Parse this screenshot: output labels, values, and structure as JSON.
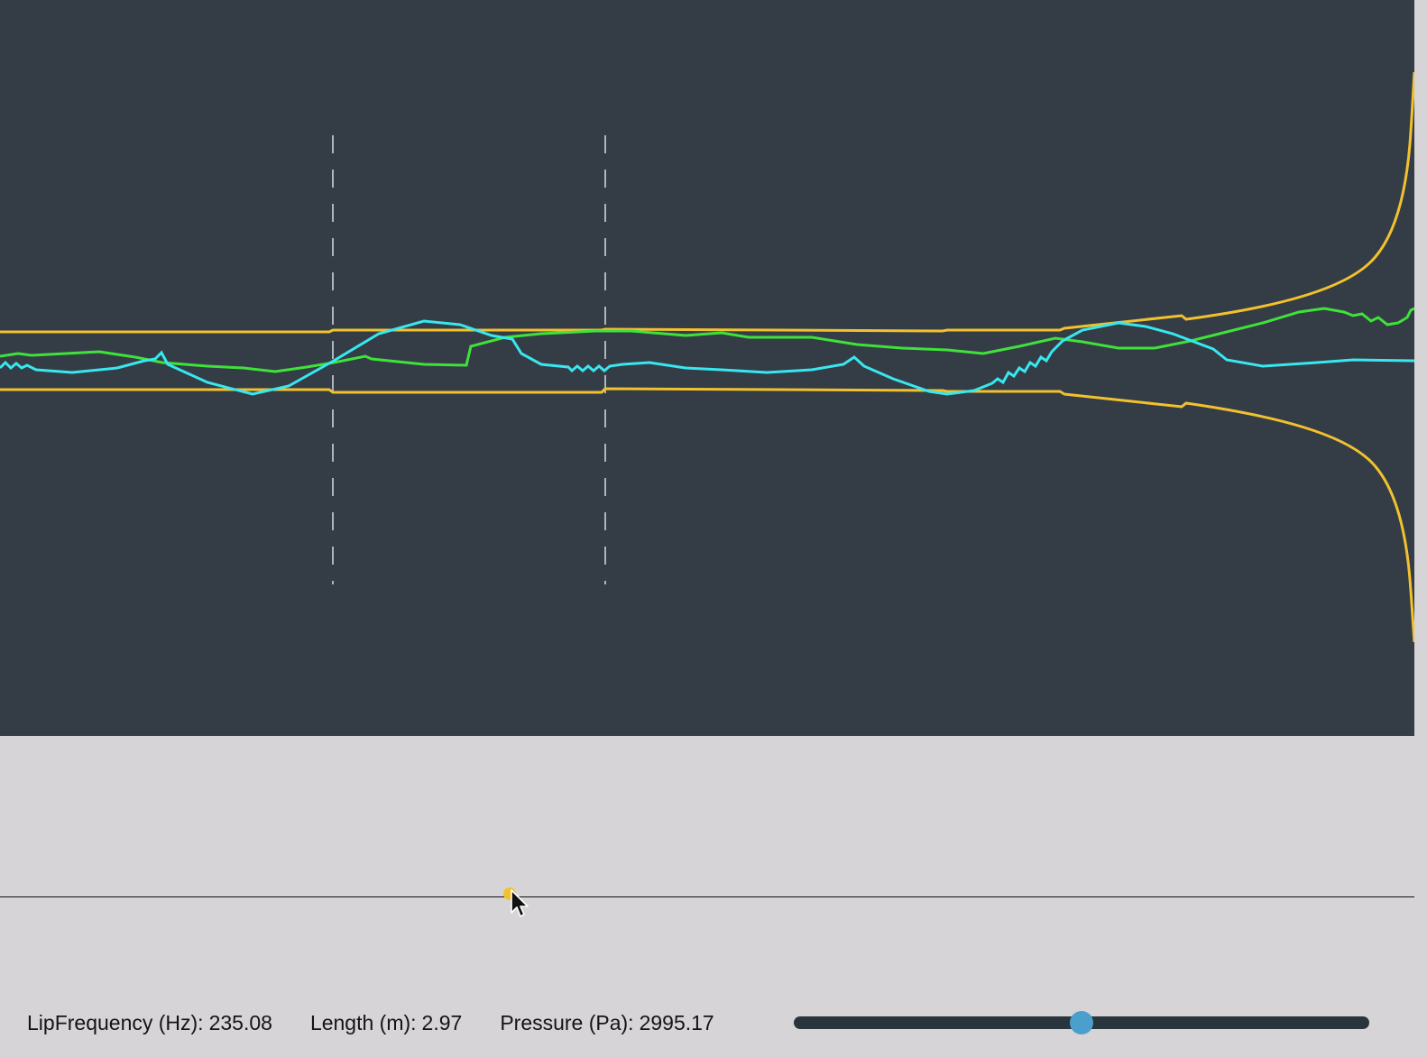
{
  "colors": {
    "canvas_bg": "#343d46",
    "panel_bg": "#d6d4d7",
    "bore": "#f2c12e",
    "pressure_wave": "#3fe23a",
    "velocity_wave": "#38e7ef",
    "marker_line": "#aeb4ba",
    "slider_track": "#2a343c",
    "slider_thumb": "#4a9fcc"
  },
  "params": {
    "lip_frequency": {
      "label": "LipFrequency (Hz):",
      "value": "235.08"
    },
    "length": {
      "label": "Length (m):",
      "value": "2.97"
    },
    "pressure": {
      "label": "Pressure (Pa):",
      "value": "2995.17"
    }
  },
  "slider": {
    "value_fraction": 0.5
  }
}
